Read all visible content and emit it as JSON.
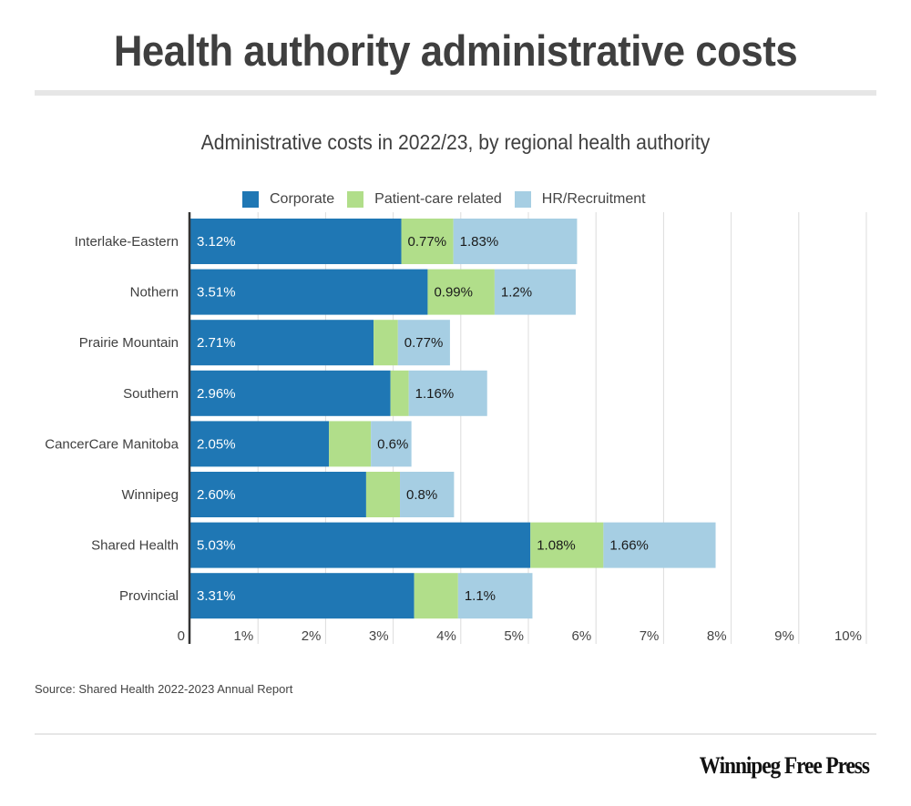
{
  "chart_data": {
    "type": "bar",
    "orientation": "horizontal",
    "stacked": true,
    "title": "Health authority administrative costs",
    "subtitle": "Administrative costs in 2022/23, by regional health authority",
    "xlabel": "",
    "ylabel": "",
    "xlim": [
      0,
      10
    ],
    "grid": true,
    "legend_position": "top",
    "categories": [
      "Interlake-Eastern",
      "Nothern",
      "Prairie Mountain",
      "Southern",
      "CancerCare Manitoba",
      "Winnipeg",
      "Shared Health",
      "Provincial"
    ],
    "x_ticks": [
      "0",
      "1%",
      "2%",
      "3%",
      "4%",
      "5%",
      "6%",
      "7%",
      "8%",
      "9%",
      "10%"
    ],
    "series": [
      {
        "name": "Corporate",
        "color": "#1f77b4",
        "values": [
          3.12,
          3.51,
          2.71,
          2.96,
          2.05,
          2.6,
          5.03,
          3.31
        ],
        "labels": [
          "3.12%",
          "3.51%",
          "2.71%",
          "2.96%",
          "2.05%",
          "2.60%",
          "5.03%",
          "3.31%"
        ]
      },
      {
        "name": "Patient-care related",
        "color": "#b1de8a",
        "values": [
          0.77,
          0.99,
          0.36,
          0.27,
          0.62,
          0.5,
          1.08,
          0.65
        ],
        "labels": [
          "0.77%",
          "0.99%",
          "",
          "",
          "",
          "",
          "1.08%",
          ""
        ]
      },
      {
        "name": "HR/Recruitment",
        "color": "#a6cee3",
        "values": [
          1.83,
          1.2,
          0.77,
          1.16,
          0.6,
          0.8,
          1.66,
          1.1
        ],
        "labels": [
          "1.83%",
          "1.2%",
          "0.77%",
          "1.16%",
          "0.6%",
          "0.8%",
          "1.66%",
          "1.1%"
        ]
      }
    ],
    "source": "Source: Shared Health 2022-2023 Annual Report"
  },
  "header": {
    "title": "Health authority administrative costs",
    "subtitle": "Administrative costs in 2022/23, by regional health authority"
  },
  "footer": {
    "source": "Source: Shared Health 2022-2023 Annual Report",
    "brand": "Winnipeg Free Press"
  }
}
